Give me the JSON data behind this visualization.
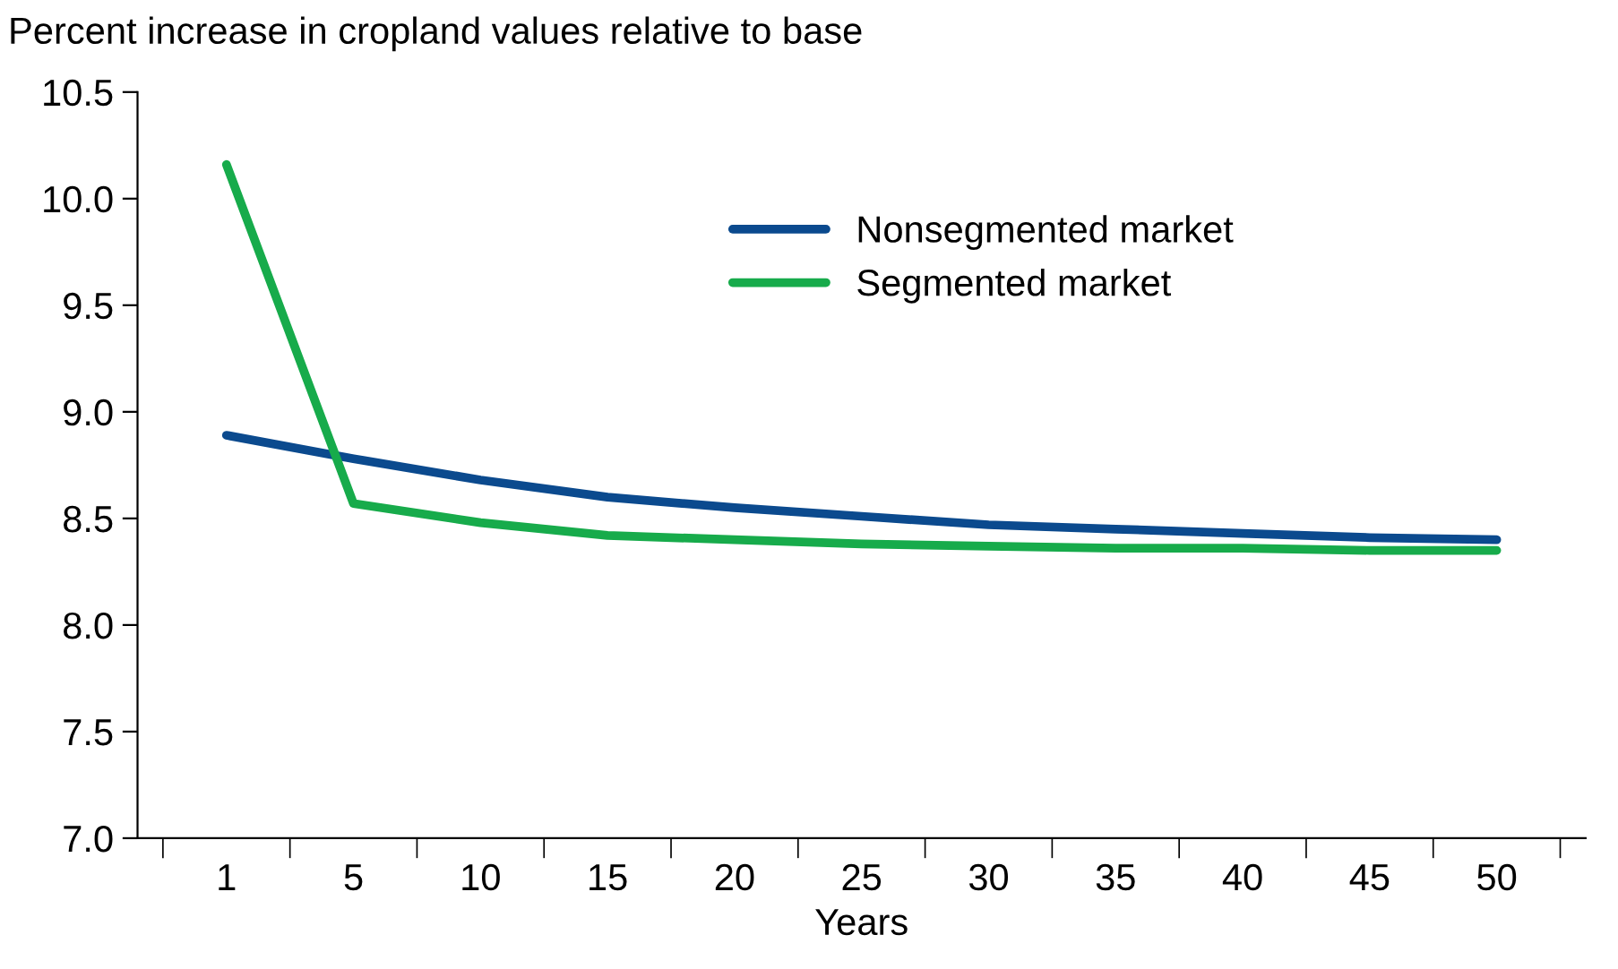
{
  "chart_data": {
    "type": "line",
    "ylabel": "Percent increase in cropland values relative to base",
    "xlabel": "Years",
    "categories": [
      "1",
      "5",
      "10",
      "15",
      "20",
      "25",
      "30",
      "35",
      "40",
      "45",
      "50"
    ],
    "series": [
      {
        "name": "Nonsegmented market",
        "color": "#0b4a8e",
        "values": [
          8.89,
          8.78,
          8.68,
          8.6,
          8.55,
          8.51,
          8.47,
          8.45,
          8.43,
          8.41,
          8.4
        ]
      },
      {
        "name": "Segmented market",
        "color": "#17ab4b",
        "values": [
          10.16,
          8.57,
          8.48,
          8.42,
          8.4,
          8.38,
          8.37,
          8.36,
          8.36,
          8.35,
          8.35
        ]
      }
    ],
    "ylim": [
      7.0,
      10.5
    ],
    "yticks": [
      {
        "value": 7.0,
        "label": "7.0"
      },
      {
        "value": 7.5,
        "label": "7.5"
      },
      {
        "value": 8.0,
        "label": "8.0"
      },
      {
        "value": 8.5,
        "label": "8.5"
      },
      {
        "value": 9.0,
        "label": "9.0"
      },
      {
        "value": 9.5,
        "label": "9.5"
      },
      {
        "value": 10.0,
        "label": "10.0"
      },
      {
        "value": 10.5,
        "label": "10.5"
      }
    ],
    "grid": false,
    "legend": "top right",
    "marker": "none",
    "line_style": "solid"
  }
}
